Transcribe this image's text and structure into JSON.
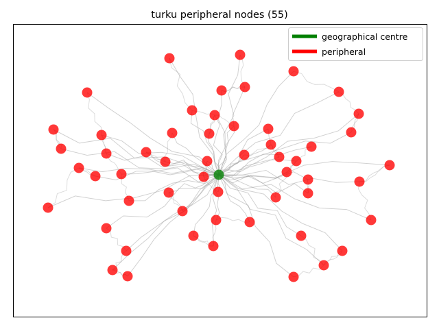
{
  "chart_data": {
    "type": "scatter",
    "title": "turku peripheral nodes (55)",
    "xlabel": "",
    "ylabel": "",
    "axis_ticks": "none",
    "grid": false,
    "legend_position": "top-right",
    "legend": [
      {
        "label": "geographical centre",
        "color": "#008000"
      },
      {
        "label": "peripheral",
        "color": "#ff0000"
      }
    ],
    "edge_color": "#9a9a9a",
    "series": [
      {
        "name": "geographical centre",
        "color": "#008000",
        "points": [
          [
            319,
            255
          ]
        ]
      },
      {
        "name": "peripheral",
        "color": "#ff0000",
        "points": [
          [
            247,
            85
          ],
          [
            350,
            80
          ],
          [
            428,
            104
          ],
          [
            127,
            135
          ],
          [
            323,
            132
          ],
          [
            357,
            127
          ],
          [
            494,
            134
          ],
          [
            280,
            161
          ],
          [
            313,
            168
          ],
          [
            523,
            166
          ],
          [
            78,
            189
          ],
          [
            341,
            184
          ],
          [
            391,
            188
          ],
          [
            148,
            197
          ],
          [
            251,
            194
          ],
          [
            305,
            195
          ],
          [
            512,
            193
          ],
          [
            89,
            217
          ],
          [
            155,
            224
          ],
          [
            213,
            222
          ],
          [
            395,
            211
          ],
          [
            454,
            214
          ],
          [
            356,
            226
          ],
          [
            407,
            229
          ],
          [
            241,
            236
          ],
          [
            302,
            235
          ],
          [
            432,
            235
          ],
          [
            568,
            241
          ],
          [
            115,
            245
          ],
          [
            139,
            257
          ],
          [
            177,
            254
          ],
          [
            297,
            258
          ],
          [
            418,
            251
          ],
          [
            449,
            262
          ],
          [
            524,
            265
          ],
          [
            246,
            281
          ],
          [
            318,
            280
          ],
          [
            449,
            282
          ],
          [
            188,
            293
          ],
          [
            402,
            288
          ],
          [
            70,
            303
          ],
          [
            266,
            308
          ],
          [
            315,
            321
          ],
          [
            364,
            324
          ],
          [
            541,
            321
          ],
          [
            155,
            333
          ],
          [
            282,
            344
          ],
          [
            439,
            344
          ],
          [
            311,
            359
          ],
          [
            184,
            366
          ],
          [
            499,
            366
          ],
          [
            472,
            387
          ],
          [
            164,
            394
          ],
          [
            186,
            403
          ],
          [
            428,
            404
          ]
        ]
      }
    ]
  }
}
